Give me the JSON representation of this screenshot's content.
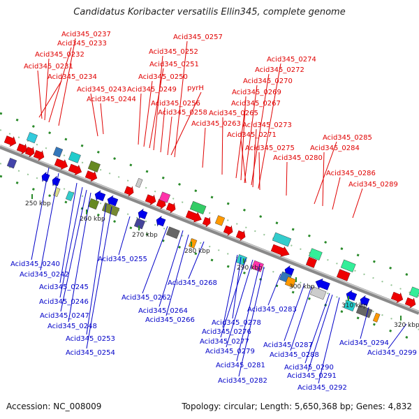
{
  "title": "Candidatus Koribacter versatilis Ellin345, complete genome",
  "footer": {
    "accession": "Accession: NC_008009",
    "summary": "Topology: circular; Length: 5,650,368 bp; Genes: 4,832"
  },
  "colors": {
    "forward": "#ee0000",
    "reverse": "#0000ee",
    "backbone": "#8a8a8a",
    "top_label": "#e00000",
    "bottom_label": "#0000c8",
    "tick": "#2a8a2a"
  },
  "scale_labels": [
    "250 kbp",
    "260 kbp",
    "270 kbp",
    "280 kbp",
    "290 kbp",
    "300 kbp",
    "310 kbp",
    "320 kbp"
  ],
  "top_genes": [
    "Acid345_0237",
    "Acid345_0233",
    "Acid345_0232",
    "Acid345_0231",
    "Acid345_0234",
    "Acid345_0243",
    "Acid345_0244",
    "Acid345_0257",
    "Acid345_0252",
    "Acid345_0251",
    "Acid345_0250",
    "Acid345_0249",
    "pyrH",
    "Acid345_0256",
    "Acid345_0258",
    "Acid345_0274",
    "Acid345_0272",
    "Acid345_0270",
    "Acid345_0269",
    "Acid345_0267",
    "Acid345_0265",
    "Acid345_0263",
    "Acid345_0273",
    "Acid345_0271",
    "Acid345_0275",
    "Acid345_0280",
    "Acid345_0285",
    "Acid345_0284",
    "Acid345_0286",
    "Acid345_0289"
  ],
  "bottom_genes": [
    "Acid345_0240",
    "Acid345_0242",
    "Acid345_0245",
    "Acid345_0246",
    "Acid345_0247",
    "Acid345_0248",
    "Acid345_0253",
    "Acid345_0254",
    "Acid345_0255",
    "Acid345_0262",
    "Acid345_0264",
    "Acid345_0266",
    "Acid345_0268",
    "Acid345_0278",
    "Acid345_0276",
    "Acid345_0277",
    "Acid345_0279",
    "Acid345_0281",
    "Acid345_0282",
    "Acid345_0283",
    "Acid345_0287",
    "Acid345_0288",
    "Acid345_0290",
    "Acid345_0291",
    "Acid345_0292",
    "Acid345_0294",
    "Acid345_0299"
  ]
}
